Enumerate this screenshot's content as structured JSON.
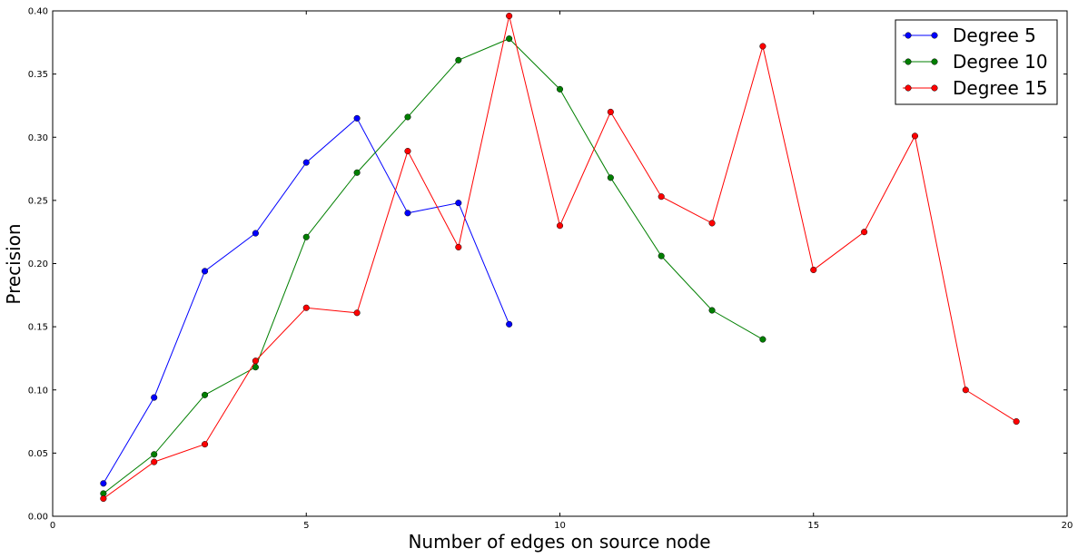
{
  "chart_data": {
    "type": "line",
    "xlabel": "Number of edges on source node",
    "ylabel": "Precision",
    "xlim": [
      0,
      20
    ],
    "ylim": [
      0,
      0.4
    ],
    "xticks": [
      0,
      5,
      10,
      15,
      20
    ],
    "xtick_labels": [
      "0",
      "5",
      "10",
      "15",
      "20"
    ],
    "yticks": [
      0,
      0.05,
      0.1,
      0.15,
      0.2,
      0.25,
      0.3,
      0.35,
      0.4
    ],
    "ytick_labels": [
      "0.00",
      "0.05",
      "0.10",
      "0.15",
      "0.20",
      "0.25",
      "0.30",
      "0.35",
      "0.40"
    ],
    "grid": false,
    "legend_position": "top-right",
    "series": [
      {
        "name": "Degree 5",
        "color": "#0000ff",
        "x": [
          1,
          2,
          3,
          4,
          5,
          6,
          7,
          8,
          9
        ],
        "y": [
          0.026,
          0.094,
          0.194,
          0.224,
          0.28,
          0.315,
          0.24,
          0.248,
          0.152
        ]
      },
      {
        "name": "Degree 10",
        "color": "#007f00",
        "x": [
          1,
          2,
          3,
          4,
          5,
          6,
          7,
          8,
          9,
          10,
          11,
          12,
          13,
          14
        ],
        "y": [
          0.018,
          0.049,
          0.096,
          0.118,
          0.221,
          0.272,
          0.316,
          0.361,
          0.378,
          0.338,
          0.268,
          0.206,
          0.163,
          0.14
        ]
      },
      {
        "name": "Degree 15",
        "color": "#ff0000",
        "x": [
          1,
          2,
          3,
          4,
          5,
          6,
          7,
          8,
          9,
          10,
          11,
          12,
          13,
          14,
          15,
          16,
          17,
          18,
          19
        ],
        "y": [
          0.014,
          0.043,
          0.057,
          0.123,
          0.165,
          0.161,
          0.289,
          0.213,
          0.396,
          0.23,
          0.32,
          0.253,
          0.232,
          0.372,
          0.195,
          0.225,
          0.301,
          0.1,
          0.075
        ]
      }
    ]
  }
}
